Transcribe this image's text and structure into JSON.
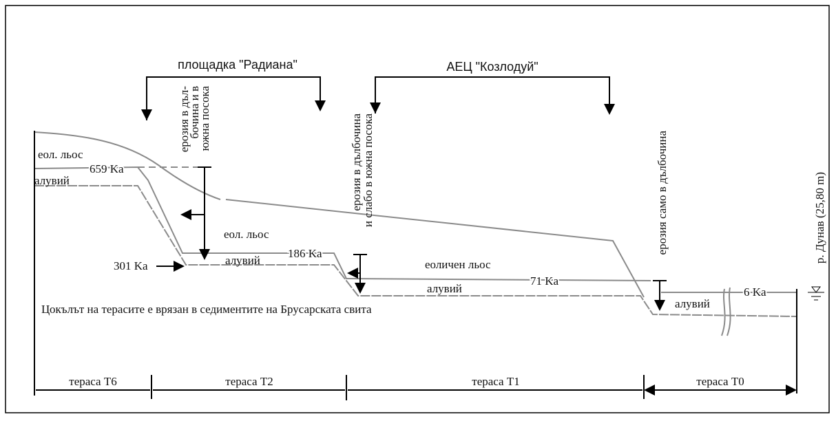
{
  "headers": {
    "site": "площадка \"Радиана\"",
    "npp": "АЕЦ \"Козлодуй\""
  },
  "erosion_notes": {
    "radiana": [
      "ерозия в дъл-",
      "бочина и в",
      "южна посока"
    ],
    "t1": [
      "ерозия в дълбочина",
      "и слабо в южна посока"
    ],
    "t0": [
      "ерозия само в дълбочина"
    ]
  },
  "river": "р. Дунав (25,80 m)",
  "layer_labels": [
    "еол. льос",
    "алувий",
    "еол. льос",
    "алувий",
    "еоличен льос",
    "алувий",
    "алувий"
  ],
  "ages": [
    "659 Ka",
    "301 Ka",
    "186 Ka",
    "71 Ka",
    "6 Ka"
  ],
  "base_note": "Цокълът на терасите е врязан в седиментите на Брусарската свита",
  "terraces": [
    "тераса Т6",
    "тераса Т2",
    "тераса Т1",
    "тераса Т0"
  ]
}
